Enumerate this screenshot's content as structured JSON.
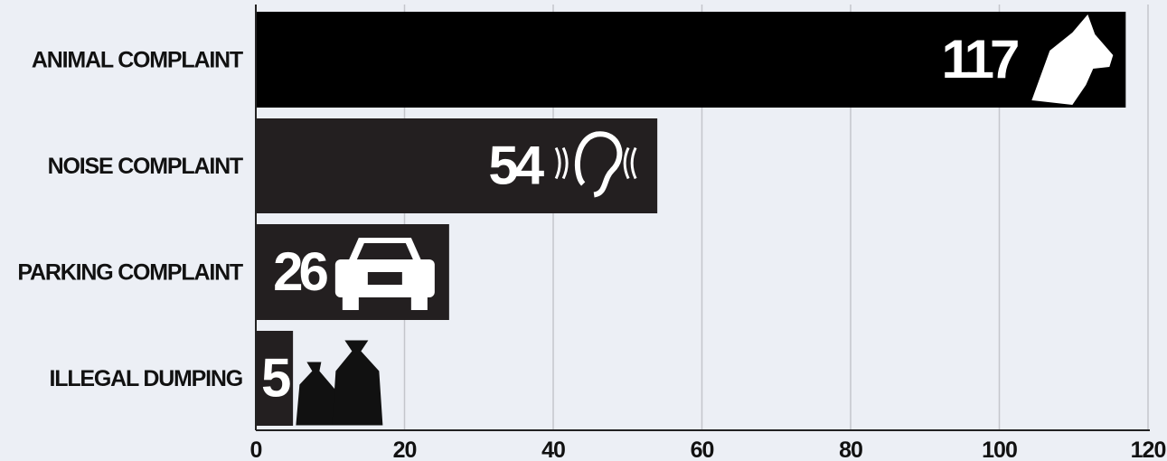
{
  "chart_data": {
    "type": "bar",
    "orientation": "horizontal",
    "categories": [
      "ANIMAL COMPLAINT",
      "NOISE COMPLAINT",
      "PARKING COMPLAINT",
      "ILLEGAL DUMPING"
    ],
    "values": [
      117,
      54,
      26,
      5
    ],
    "colors": [
      "#000000",
      "#231f20",
      "#231f20",
      "#231f20"
    ],
    "xlim": [
      0,
      120
    ],
    "xticks": [
      0,
      20,
      40,
      60,
      80,
      100,
      120
    ],
    "grid": true
  }
}
